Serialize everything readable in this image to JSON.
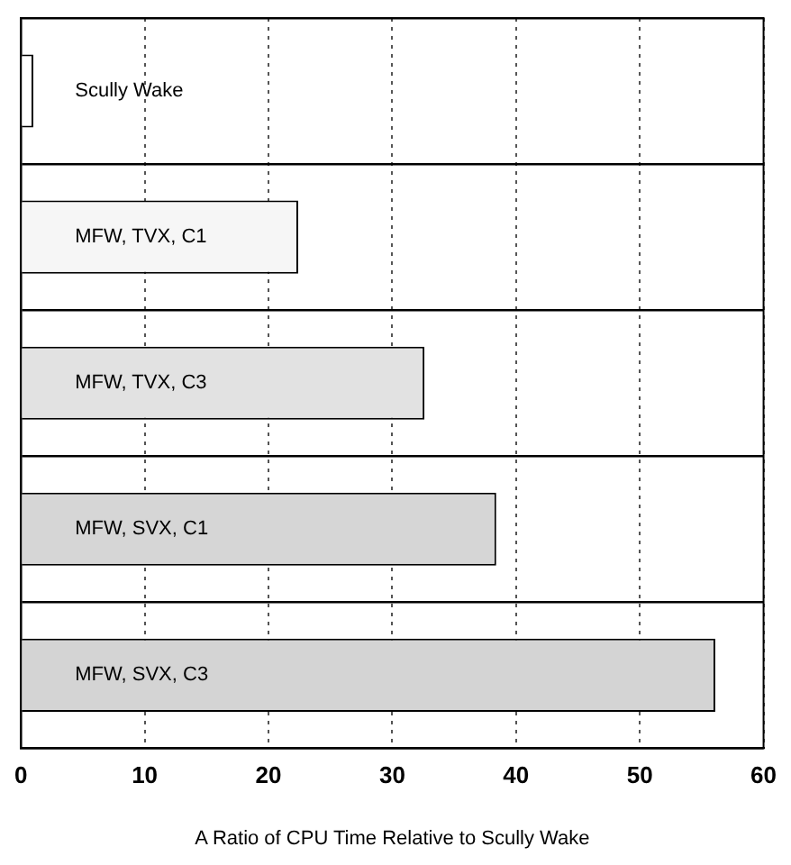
{
  "chart_data": {
    "type": "bar",
    "orientation": "horizontal",
    "xlabel": "A Ratio of CPU Time Relative to Scully Wake",
    "categories": [
      "Scully Wake",
      "MFW, TVX, C1",
      "MFW, TVX, C3",
      "MFW, SVX, C1",
      "MFW, SVX, C3"
    ],
    "values": [
      1,
      22.4,
      32.6,
      38.4,
      56.1
    ],
    "colors": [
      "#ffffff",
      "#f6f6f6",
      "#e2e2e2",
      "#d6d6d6",
      "#d4d4d4"
    ],
    "xlim": [
      0,
      60
    ],
    "xticks": [
      0,
      10,
      20,
      30,
      40,
      50,
      60
    ],
    "grid": true,
    "legend": false,
    "tick_labels": "x"
  }
}
